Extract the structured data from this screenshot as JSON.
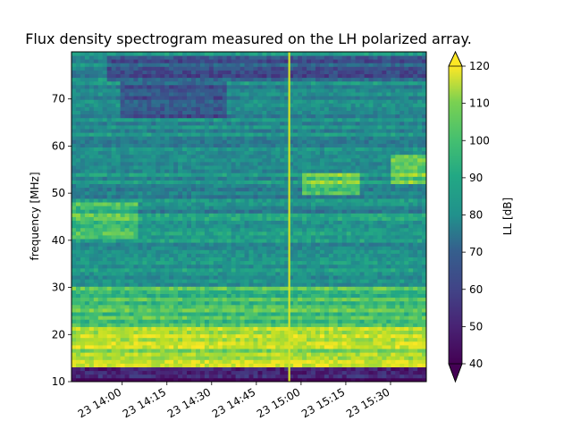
{
  "chart_data": {
    "type": "heatmap",
    "title": "Flux density spectrogram measured on the LH polarized array.",
    "ylabel": "frequency [MHz]",
    "xlabel": "",
    "ylim": [
      10,
      80
    ],
    "xlim": [
      "2024-01-23 13:43",
      "2024-01-23 15:42"
    ],
    "x_ticks": [
      {
        "time": "14:00",
        "label": "23 14:00"
      },
      {
        "time": "14:15",
        "label": "23 14:15"
      },
      {
        "time": "14:30",
        "label": "23 14:30"
      },
      {
        "time": "14:45",
        "label": "23 14:45"
      },
      {
        "time": "15:00",
        "label": "23 15:00"
      },
      {
        "time": "15:15",
        "label": "23 15:15"
      },
      {
        "time": "15:30",
        "label": "23 15:30"
      }
    ],
    "y_ticks": [
      10,
      20,
      30,
      40,
      50,
      60,
      70
    ],
    "colorbar": {
      "label": "LL [dB]",
      "range": [
        40,
        120
      ],
      "ticks": [
        40,
        50,
        60,
        70,
        80,
        90,
        100,
        110,
        120
      ],
      "extend": "both",
      "colormap": "viridis"
    },
    "features": [
      {
        "kind": "vertical-line",
        "time": "14:56",
        "value_db": 115
      },
      {
        "kind": "band",
        "freq_range": [
          10,
          13
        ],
        "value_db": 45
      },
      {
        "kind": "band",
        "freq_range": [
          13,
          22
        ],
        "value_db": 108
      },
      {
        "kind": "band",
        "freq_range": [
          22,
          30
        ],
        "value_db": 95
      },
      {
        "kind": "band",
        "freq_range": [
          30,
          46
        ],
        "value_db": 82
      },
      {
        "kind": "band",
        "freq_range": [
          46,
          80
        ],
        "value_db": 78
      },
      {
        "kind": "bright-patch",
        "freq_range": [
          40,
          48
        ],
        "time_range": [
          "13:43",
          "14:05"
        ],
        "value_db": 95
      },
      {
        "kind": "bright-patch",
        "freq_range": [
          50,
          54
        ],
        "time_range": [
          "15:00",
          "15:20"
        ],
        "value_db": 100
      },
      {
        "kind": "bright-patch",
        "freq_range": [
          52,
          58
        ],
        "time_range": [
          "15:30",
          "15:42"
        ],
        "value_db": 100
      },
      {
        "kind": "dark-patch",
        "freq_range": [
          66,
          76
        ],
        "time_range": [
          "14:00",
          "14:35"
        ],
        "value_db": 62
      },
      {
        "kind": "dark-patch",
        "freq_range": [
          74,
          79
        ],
        "time_range": [
          "13:55",
          "15:42"
        ],
        "value_db": 62
      }
    ]
  }
}
